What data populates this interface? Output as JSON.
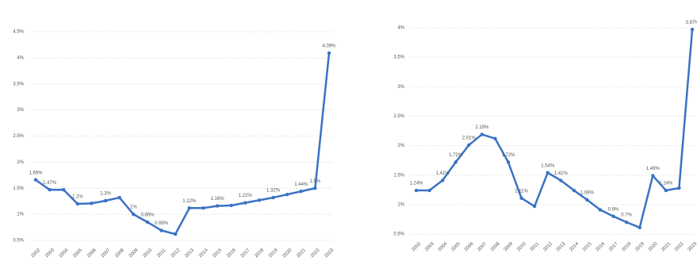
{
  "chart_data": [
    {
      "type": "line",
      "categories": [
        "2002",
        "2003",
        "2004",
        "2005",
        "2006",
        "2007",
        "2008",
        "2009",
        "2010",
        "2011",
        "2012",
        "2013",
        "2014",
        "2015",
        "2016",
        "2017",
        "2018",
        "2019",
        "2020",
        "2021",
        "2022",
        "2023"
      ],
      "series": [
        {
          "color": "#3a72c4",
          "values": [
            1.66,
            1.47,
            1.47,
            1.2,
            1.21,
            1.26,
            1.32,
            1.0,
            0.85,
            0.69,
            0.62,
            1.12,
            1.12,
            1.16,
            1.17,
            1.22,
            1.27,
            1.32,
            1.38,
            1.44,
            1.5,
            4.09
          ],
          "value_labels": [
            "1.66%",
            "1.47%",
            null,
            "1.2%",
            null,
            "1.3%",
            null,
            "1%",
            "0.85%",
            "0.69%",
            null,
            "1.12%",
            null,
            "1.16%",
            null,
            "1.22%",
            null,
            "1.32%",
            null,
            "1.44%",
            "1.5%",
            "4.09%"
          ]
        }
      ],
      "ylim": [
        0.5,
        4.5
      ],
      "yticks": [
        {
          "value": 0.5,
          "label": "0.5%"
        },
        {
          "value": 1,
          "label": "1%"
        },
        {
          "value": 1.5,
          "label": "1.5%"
        },
        {
          "value": 2,
          "label": "2%"
        },
        {
          "value": 2.5,
          "label": "2.5%"
        },
        {
          "value": 3,
          "label": "3%"
        },
        {
          "value": 3.5,
          "label": "3.5%"
        },
        {
          "value": 4,
          "label": "4%"
        },
        {
          "value": 4.5,
          "label": "4.5%"
        }
      ],
      "grid": true
    },
    {
      "type": "line",
      "categories": [
        "2002",
        "2003",
        "2004",
        "2005",
        "2006",
        "2007",
        "2008",
        "2009",
        "2010",
        "2011",
        "2012",
        "2013",
        "2014",
        "2015",
        "2016",
        "2017",
        "2018",
        "2019",
        "2020",
        "2021",
        "2022",
        "2023"
      ],
      "series": [
        {
          "color": "#3a72c4",
          "values": [
            1.24,
            1.24,
            1.41,
            1.72,
            2.01,
            2.19,
            2.12,
            1.72,
            1.11,
            0.97,
            1.54,
            1.41,
            1.24,
            1.08,
            0.91,
            0.8,
            0.7,
            0.61,
            1.49,
            1.24,
            1.28,
            3.97
          ],
          "value_labels": [
            "1.24%",
            null,
            "1.41%",
            "1.72%",
            "2.01%",
            "2.19%",
            null,
            "1.72%",
            "1.11%",
            null,
            "1.54%",
            "1.41%",
            null,
            "1.08%",
            null,
            "0.8%",
            "0.7%",
            null,
            "1.49%",
            "1.24%",
            null,
            "3.97%"
          ]
        }
      ],
      "ylim": [
        0.5,
        4
      ],
      "yticks": [
        {
          "value": 0.5,
          "label": "0.5%"
        },
        {
          "value": 1,
          "label": "1%"
        },
        {
          "value": 1.5,
          "label": "1.5%"
        },
        {
          "value": 2,
          "label": "2%"
        },
        {
          "value": 2.5,
          "label": "2.5%"
        },
        {
          "value": 3,
          "label": "3%"
        },
        {
          "value": 3.5,
          "label": "3.5%"
        },
        {
          "value": 4,
          "label": "4%"
        }
      ],
      "grid": true
    }
  ]
}
